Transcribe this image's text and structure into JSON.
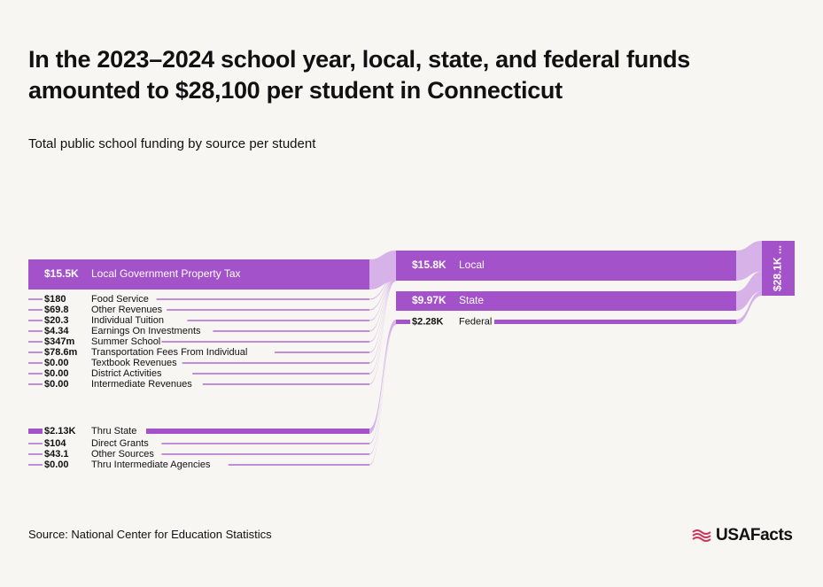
{
  "header": {
    "title": "In the 2023–2024 school year, local, state, and federal funds amounted to $28,100 per student in Connecticut",
    "subtitle": "Total public school funding by source per student"
  },
  "footer": {
    "source": "Source: National Center for Education Statistics",
    "logo_text": "USAFacts",
    "logo_icon": "us-flag-icon"
  },
  "colors": {
    "accent": "#a452c9",
    "flow": "#d7b2e8",
    "line": "#9a49c0",
    "background": "#f7f6f2"
  },
  "chart_data": {
    "type": "sankey",
    "title": "In the 2023–2024 school year, local, state, and federal funds amounted to $28,100 per student in Connecticut",
    "subtitle": "Total public school funding by source per student",
    "left_nodes": [
      {
        "value_label": "$15.5K",
        "name": "Local Government Property Tax",
        "value": 15500,
        "target": "Local"
      },
      {
        "value_label": "$180",
        "name": "Food Service",
        "value": 180,
        "target": "Local"
      },
      {
        "value_label": "$69.8",
        "name": "Other Revenues",
        "value": 69.8,
        "target": "Local"
      },
      {
        "value_label": "$20.3",
        "name": "Individual Tuition",
        "value": 20.3,
        "target": "Local"
      },
      {
        "value_label": "$4.34",
        "name": "Earnings On Investments",
        "value": 4.34,
        "target": "Local"
      },
      {
        "value_label": "$347m",
        "name": "Summer School",
        "value": 0.347,
        "target": "Local"
      },
      {
        "value_label": "$78.6m",
        "name": "Transportation Fees From Individual",
        "value": 0.0786,
        "target": "Local"
      },
      {
        "value_label": "$0.00",
        "name": "Textbook Revenues",
        "value": 0,
        "target": "Local"
      },
      {
        "value_label": "$0.00",
        "name": "District Activities",
        "value": 0,
        "target": "Local"
      },
      {
        "value_label": "$0.00",
        "name": "Intermediate Revenues",
        "value": 0,
        "target": "Local"
      },
      {
        "value_label": "$2.13K",
        "name": "Thru State",
        "value": 2130,
        "target": "Federal"
      },
      {
        "value_label": "$104",
        "name": "Direct Grants",
        "value": 104,
        "target": "Federal"
      },
      {
        "value_label": "$43.1",
        "name": "Other Sources",
        "value": 43.1,
        "target": "Federal"
      },
      {
        "value_label": "$0.00",
        "name": "Thru Intermediate Agencies",
        "value": 0,
        "target": "Federal"
      }
    ],
    "middle_nodes": [
      {
        "value_label": "$15.8K",
        "name": "Local",
        "value": 15800
      },
      {
        "value_label": "$9.97K",
        "name": "State",
        "value": 9970
      },
      {
        "value_label": "$2.28K",
        "name": "Federal",
        "value": 2280
      }
    ],
    "total_node": {
      "value_label": "$28.1K ...",
      "value": 28100
    }
  }
}
